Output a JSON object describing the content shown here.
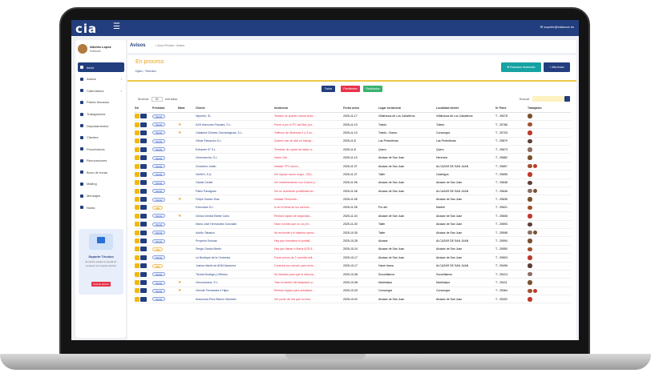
{
  "app": {
    "logo": "cia",
    "menu_icon": "hamburger-icon",
    "email": "soporte@ciatocoe.es"
  },
  "user": {
    "name": "Alberto López",
    "role": "Software"
  },
  "sidebar": {
    "items": [
      {
        "label": "Inicio",
        "icon": "home-icon",
        "active": true
      },
      {
        "label": "Avisos",
        "icon": "bell-icon",
        "chevron": true
      },
      {
        "label": "Calendarios",
        "icon": "calendar-icon",
        "chevron": true
      },
      {
        "label": "Partes firmados",
        "icon": "file-icon"
      },
      {
        "label": "Trabajadores",
        "icon": "users-icon"
      },
      {
        "label": "Departamentos",
        "icon": "building-icon"
      },
      {
        "label": "Clientes",
        "icon": "client-icon"
      },
      {
        "label": "Proveedores",
        "icon": "truck-icon"
      },
      {
        "label": "Renovaciones",
        "icon": "refresh-icon"
      },
      {
        "label": "Bono de horas",
        "icon": "clock-icon"
      },
      {
        "label": "Mailing",
        "icon": "mail-icon"
      },
      {
        "label": "Mensajes",
        "icon": "message-icon"
      },
      {
        "label": "Notas",
        "icon": "note-icon"
      }
    ]
  },
  "support": {
    "title": "Soporte Técnico",
    "desc": "El mismo equipo te ayuda en contacto con soporte técnico",
    "button": "Soporte técnico"
  },
  "header": {
    "title": "Avisos",
    "breadcrumb": "Zona Privada  ›  Avisos"
  },
  "main": {
    "status_title": "En proceso",
    "dept": "Dpto.: Técnico",
    "btn_auto": "✚ Buscador Avanzado",
    "btn_add": "+ Alta Aviso",
    "filters": [
      "Todos",
      "Pendientes",
      "Realizados"
    ],
    "show_label": "Mostrar",
    "show_value": "50",
    "show_suffix": "entradas",
    "search_label": "Buscar"
  },
  "table": {
    "headers": [
      "Sel",
      "Prioridad",
      "Mant.",
      "Cliente",
      "Incidencia",
      "Fecha aviso",
      "Lugar incidencia",
      "Localidad cliente",
      "Nº Parte",
      "Trabajador"
    ],
    "rows": [
      {
        "prio": "Media",
        "star": false,
        "cli": "Hipoehe, SL",
        "inc": "Teclado se queden varias tecla...",
        "fecha": "2025-11-17",
        "lugar": "Villafranca de Los Caballeros",
        "loc": "Villafranca de Los Caballeros",
        "parte": "T - 25078",
        "tech": 1
      },
      {
        "prio": "Media",
        "star": true,
        "cli": "AXH Asesores Fiscales, S.L.",
        "inc": "Poner a por el PC del Mac por...",
        "fecha": "2025-11-10",
        "lugar": "Toledo",
        "loc": "Toledo",
        "parte": "T - 25766",
        "tech": 1
      },
      {
        "prio": "Media",
        "star": true,
        "cli": "Catalana Clinicas Odontologicas, S.L.",
        "inc": "Teléfono de Sistemas 2 y 3 no...",
        "fecha": "2025-11-10",
        "lugar": "Toledo - Bueco",
        "loc": "Consuegra",
        "parte": "T - 25703",
        "tech": 1
      },
      {
        "prio": "Media",
        "star": false,
        "cli": "Olmar Elevación S.L.",
        "inc": "Quieren dar de alta un trabajo...",
        "fecha": "2025-11-8",
        "lugar": "Las Pedroñeras",
        "loc": "Las Pedroñeras",
        "parte": "T - 25879",
        "tech": 1
      },
      {
        "prio": "Media",
        "star": false,
        "cli": "Extracter 97 S.L.",
        "inc": "Terminar de copiar los datos a...",
        "fecha": "2025-11-8",
        "lugar": "Quero",
        "loc": "Quero",
        "parte": "T - 25673",
        "tech": 1
      },
      {
        "prio": "Media",
        "star": false,
        "cli": "Cinemancha, S.L.",
        "inc": "Hacer SAI...",
        "fecha": "2025-11-10",
        "lugar": "Alcázar de San Juan",
        "loc": "Herencia",
        "parte": "T - 25682",
        "tech": 1
      },
      {
        "prio": "Media",
        "star": false,
        "cli": "Chunterío Julián",
        "inc": "Instalar TPV nuevo...",
        "fecha": "2025-11-07",
        "lugar": "Alcázar de San Juan",
        "loc": "ALCAZAR DE SAN JUAN",
        "parte": "T - 25657",
        "tech": 2
      },
      {
        "prio": "Media",
        "star": false,
        "cli": "VeeKEt, S.A.",
        "inc": "Ver equipo ozono negro, CEU...",
        "fecha": "2025-11-07",
        "lugar": "Taller",
        "loc": "Castelgos",
        "parte": "T - 25655",
        "tech": 1
      },
      {
        "prio": "Media",
        "star": false,
        "cli": "Global Center",
        "inc": "Ver mantenimiento con Cuarzo y...",
        "fecha": "2025-11-06",
        "lugar": "Alcázar de San Juan",
        "loc": "Alcázar de San Juan",
        "parte": "T - 25648",
        "tech": 1
      },
      {
        "prio": "Media",
        "star": false,
        "cli": "Pablo Panaguas",
        "inc": "Ver en accidente posibilidad de...",
        "fecha": "2025-11-06",
        "lugar": "Alcázar de San Juan",
        "loc": "ALCAZAR DE SAN JUAN",
        "parte": "T - 25646",
        "tech": 2
      },
      {
        "prio": "Media",
        "star": true,
        "cli": "Felipe Suarez Díaz",
        "inc": "Instalar Firewords...",
        "fecha": "2025-11-05",
        "lugar": "",
        "loc": "Alcázar de San Juan",
        "parte": "T - 25636",
        "tech": 1
      },
      {
        "prio": "Alta",
        "star": false,
        "cli": "Executran S.L.",
        "inc": "A ver el tema de los correos...",
        "fecha": "2025-11-05",
        "lugar": "Por ahí",
        "loc": "Madrid",
        "parte": "T - 25621",
        "tech": 1
      },
      {
        "prio": "Media",
        "star": true,
        "cli": "Clinica Dental Esther Cano",
        "inc": "Revisar copias de seguridad...",
        "fecha": "2025-11-04",
        "lugar": "Alcázar de San Juan",
        "loc": "Alcázar de San Juan",
        "parte": "T - 25608",
        "tech": 1
      },
      {
        "prio": "Media",
        "star": false,
        "cli": "María José Hernandez Gonzalez",
        "inc": "Hace noches que no va y le...",
        "fecha": "2025-11-03",
        "lugar": "Taller",
        "loc": "Alcázar de San Juan",
        "parte": "T - 25593",
        "tech": 1
      },
      {
        "prio": "Media",
        "star": false,
        "cli": "Adolfo Tabasco",
        "inc": "No enciende y el sistema opera...",
        "fecha": "2025-10-30",
        "lugar": "Taller",
        "loc": "Alcázar de San Juan",
        "parte": "T - 25598",
        "tech": 2
      },
      {
        "prio": "Media",
        "star": false,
        "cli": "Proyecto Enrísas",
        "inc": "Hay que formatear el portátil...",
        "fecha": "2025-10-28",
        "lugar": "Alcázar",
        "loc": "ALCAZAR DE SAN JUAN",
        "parte": "T - 25594",
        "tech": 1
      },
      {
        "prio": "Alta",
        "star": false,
        "cli": "Sergio Garcia Martin",
        "inc": "Hay que llamar a María (678 8...",
        "fecha": "2025-10-24",
        "lugar": "Alcázar de San Juan",
        "loc": "Alcázar de San Juan",
        "parte": "T - 25550",
        "tech": 1
      },
      {
        "prio": "Media",
        "star": false,
        "cli": "La Boutique de la Cerámica",
        "inc": "Poner precio de 2 corrects sell...",
        "fecha": "2025-10-17",
        "lugar": "Alcázar de San Juan",
        "loc": "Alcázar de San Juan",
        "parte": "T - 25503",
        "tech": 1
      },
      {
        "prio": "Alta",
        "star": false,
        "cli": "Jusma cliente de ADM Asesores",
        "inc": "Conectar por remoto para revis...",
        "fecha": "2025-10-17",
        "lugar": "Hacer llama",
        "loc": "ALCAZAR DE SAN JUAN",
        "parte": "T - 25496",
        "tech": 1
      },
      {
        "prio": "Media",
        "star": false,
        "cli": "Tienda Bodega y Viñedos",
        "inc": "No llamado para que le ofrezca...",
        "fecha": "2025-10-08",
        "lugar": "Socuéllamos",
        "loc": "Socuéllamos",
        "parte": "T - 25413",
        "tech": 1
      },
      {
        "prio": "Media",
        "star": true,
        "cli": "Vimumancha, S.L.",
        "inc": "Tras el cambio del adaptador p...",
        "fecha": "2025-10-08",
        "lugar": "Madridejos",
        "loc": "Madridejos",
        "parte": "T - 25411",
        "tech": 1
      },
      {
        "prio": "Media",
        "star": true,
        "cli": "Vicente Fernandez e Hijos",
        "inc": "Revisar equipo para actualizar...",
        "fecha": "2025-10-03",
        "lugar": "Consuegra",
        "loc": "Consuegra",
        "parte": "T - 25364",
        "tech": 2
      },
      {
        "prio": "Media",
        "star": false,
        "cli": "Autonoma Pera Blanco Salvador",
        "inc": "Ver punto de red que no func...",
        "fecha": "2025-10-02",
        "lugar": "Alcázar de San Juan",
        "loc": "Alcázar de San Juan",
        "parte": "T - 25302",
        "tech": 1
      }
    ]
  }
}
